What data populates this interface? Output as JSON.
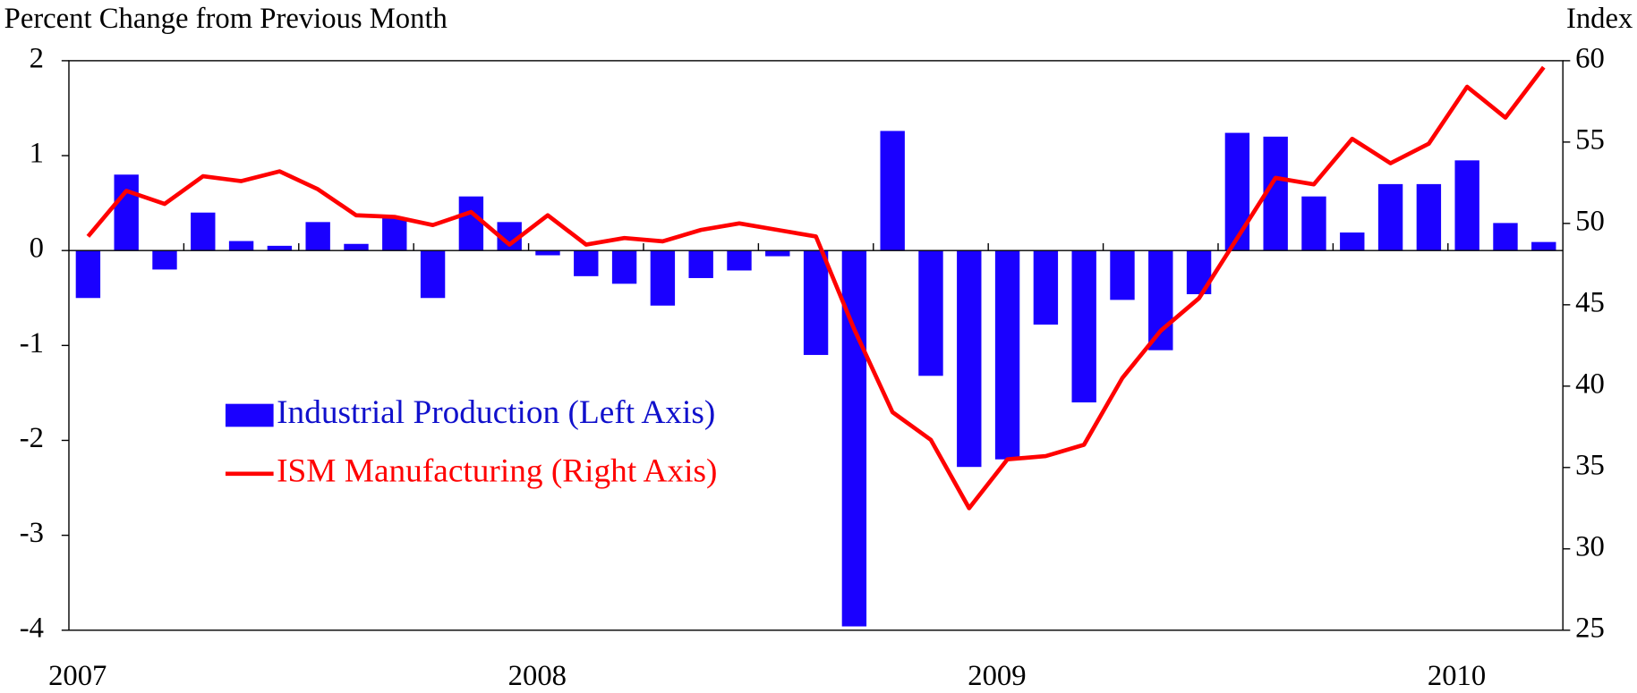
{
  "chart_data": {
    "type": "bar",
    "y_label": "Percent Change from Previous Month",
    "y2_label": "Index",
    "categories": [
      "2007",
      null,
      null,
      null,
      null,
      null,
      null,
      null,
      null,
      null,
      null,
      null,
      "2008",
      null,
      null,
      null,
      null,
      null,
      null,
      null,
      null,
      null,
      null,
      null,
      "2009",
      null,
      null,
      null,
      null,
      null,
      null,
      null,
      null,
      null,
      null,
      null,
      "2010",
      null,
      null
    ],
    "series": [
      {
        "name": "Industrial Production (Left Axis)",
        "type": "bar",
        "color": "#1a00ff",
        "values": [
          -0.5,
          0.8,
          -0.2,
          0.4,
          0.1,
          0.05,
          0.3,
          0.07,
          0.35,
          -0.5,
          0.57,
          0.3,
          -0.05,
          -0.27,
          -0.35,
          -0.58,
          -0.29,
          -0.21,
          -0.06,
          -1.1,
          -3.96,
          1.26,
          -1.32,
          -2.28,
          -2.2,
          -0.78,
          -1.6,
          -0.52,
          -1.05,
          -0.46,
          1.24,
          1.2,
          0.57,
          0.19,
          0.7,
          0.7,
          0.95,
          0.29,
          0.09
        ]
      },
      {
        "name": "ISM Manufacturing (Right Axis)",
        "type": "line",
        "axis": "y2",
        "color": "#ff0000",
        "values": [
          49.2,
          52.0,
          51.2,
          52.9,
          52.6,
          53.2,
          52.1,
          50.5,
          50.4,
          49.9,
          50.7,
          48.7,
          50.5,
          48.7,
          49.1,
          48.9,
          49.6,
          50.0,
          49.6,
          49.2,
          43.5,
          38.4,
          36.7,
          32.5,
          35.5,
          35.7,
          36.4,
          40.5,
          43.4,
          45.4,
          49.1,
          52.8,
          52.4,
          55.2,
          53.7,
          54.9,
          58.4,
          56.5,
          59.6
        ]
      }
    ],
    "ylim": [
      -4,
      2
    ],
    "yticks": [
      -4,
      -3,
      -2,
      -1,
      0,
      1,
      2
    ],
    "y2lim": [
      25,
      60
    ],
    "y2ticks": [
      25,
      30,
      35,
      40,
      45,
      50,
      55,
      60
    ],
    "grid": false
  }
}
